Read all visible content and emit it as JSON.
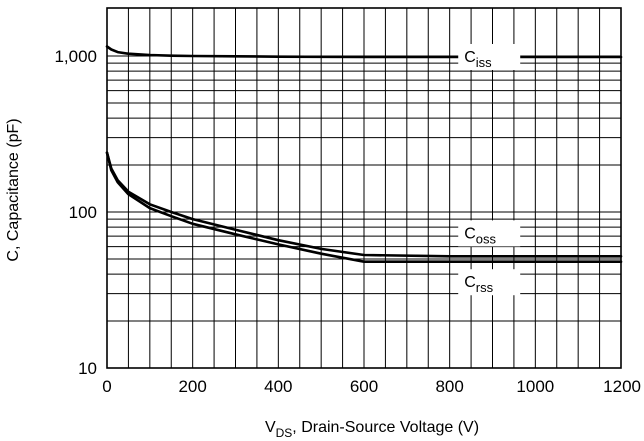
{
  "chart_data": {
    "type": "line",
    "title": "",
    "xlabel": {
      "main": "V",
      "sub": "DS",
      "rest": ", Drain-Source Voltage (V)"
    },
    "ylabel": "C, Capacitance (pF)",
    "xlim": [
      0,
      1200
    ],
    "ylim": [
      10,
      2000
    ],
    "yscale": "log",
    "grid": true,
    "x_ticks": [
      0,
      200,
      400,
      600,
      800,
      1000,
      1200
    ],
    "x_tick_labels": [
      "0",
      "200",
      "400",
      "600",
      "800",
      "1000",
      "1200"
    ],
    "y_ticks": [
      10,
      100,
      1000
    ],
    "y_tick_labels": [
      "10",
      "100",
      "1,000"
    ],
    "series": [
      {
        "label": {
          "main": "C",
          "sub": "iss"
        },
        "label_at": {
          "x": 890,
          "y": 1000
        },
        "points": [
          [
            0,
            1150
          ],
          [
            10,
            1100
          ],
          [
            25,
            1060
          ],
          [
            50,
            1035
          ],
          [
            100,
            1015
          ],
          [
            150,
            1005
          ],
          [
            200,
            1000
          ],
          [
            300,
            995
          ],
          [
            400,
            990
          ],
          [
            600,
            985
          ],
          [
            800,
            985
          ],
          [
            1000,
            985
          ],
          [
            1200,
            985
          ]
        ]
      },
      {
        "label": {
          "main": "C",
          "sub": "oss"
        },
        "label_at": {
          "x": 890,
          "y": 74
        },
        "points": [
          [
            0,
            240
          ],
          [
            10,
            190
          ],
          [
            25,
            160
          ],
          [
            50,
            135
          ],
          [
            100,
            112
          ],
          [
            150,
            100
          ],
          [
            200,
            90
          ],
          [
            300,
            77
          ],
          [
            400,
            66
          ],
          [
            500,
            58
          ],
          [
            600,
            53
          ],
          [
            800,
            52
          ],
          [
            1000,
            52
          ],
          [
            1200,
            52
          ]
        ]
      },
      {
        "label": {
          "main": "C",
          "sub": "rss"
        },
        "label_at": {
          "x": 890,
          "y": 36
        },
        "points": [
          [
            0,
            240
          ],
          [
            10,
            185
          ],
          [
            25,
            155
          ],
          [
            50,
            130
          ],
          [
            100,
            106
          ],
          [
            150,
            94
          ],
          [
            200,
            84
          ],
          [
            300,
            72
          ],
          [
            400,
            62
          ],
          [
            500,
            54
          ],
          [
            600,
            48
          ],
          [
            800,
            48
          ],
          [
            1000,
            48
          ],
          [
            1200,
            48
          ]
        ]
      }
    ]
  }
}
